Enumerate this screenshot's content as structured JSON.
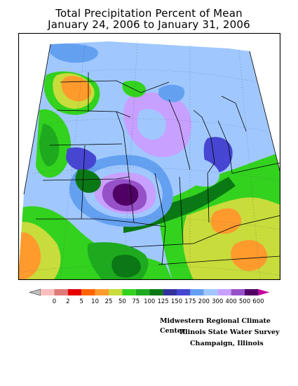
{
  "title_line1": "Total Precipitation Percent of Mean",
  "title_line2": "January 24, 2006 to January 31, 2006",
  "legend": {
    "labels": [
      "0",
      "2",
      "5",
      "10",
      "25",
      "50",
      "75",
      "100",
      "125",
      "150",
      "175",
      "200",
      "300",
      "400",
      "500",
      "600"
    ],
    "colors": [
      "#ffbfbf",
      "#e07a7a",
      "#e60000",
      "#ff6400",
      "#ff9b2d",
      "#c8dc3c",
      "#32d21e",
      "#1eaa1e",
      "#0a7814",
      "#32329b",
      "#4646d2",
      "#64a0f0",
      "#a0c8ff",
      "#c8a0ff",
      "#9650c8",
      "#500064"
    ],
    "tail_color": "#c800a0"
  },
  "credits": {
    "line1": "Midwestern Regional Climate Center",
    "line2": "Illinois State Water Survey",
    "line3": "Champaign, Illinois"
  }
}
